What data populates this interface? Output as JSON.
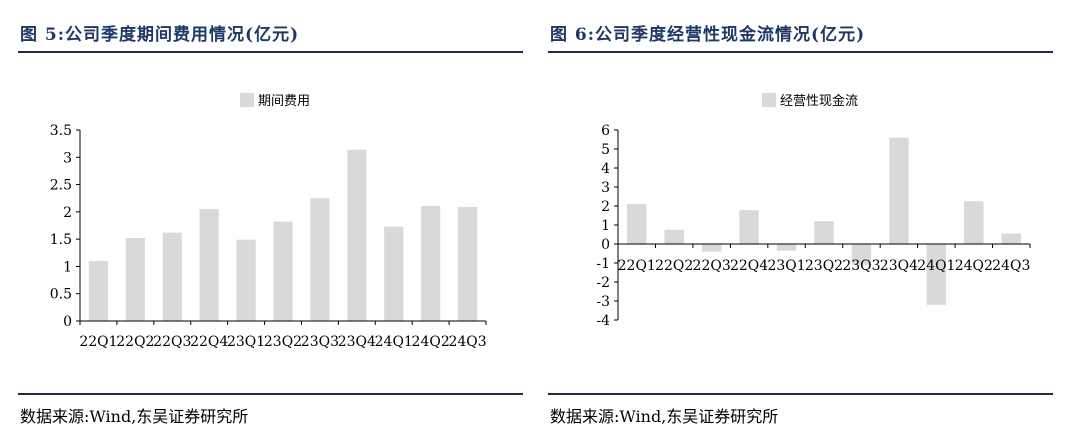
{
  "panels": [
    {
      "title": "图 5:公司季度期间费用情况(亿元)",
      "source": "数据来源:Wind,东吴证券研究所",
      "chart_data": {
        "type": "bar",
        "title": "",
        "xlabel": "",
        "ylabel": "",
        "legend": "top-center",
        "grid": false,
        "categories": [
          "22Q1",
          "22Q2",
          "22Q3",
          "22Q4",
          "23Q1",
          "23Q2",
          "23Q3",
          "23Q4",
          "24Q1",
          "24Q2",
          "24Q3"
        ],
        "series": [
          {
            "name": "期间费用",
            "values": [
              1.1,
              1.52,
              1.62,
              2.05,
              1.49,
              1.82,
              2.25,
              3.14,
              1.73,
              2.11,
              2.09
            ]
          }
        ],
        "ylim": [
          0,
          3.5
        ],
        "yticks": [
          0,
          0.5,
          1,
          1.5,
          2,
          2.5,
          3,
          3.5
        ],
        "ytick_labels": [
          "0",
          "0.5",
          "1",
          "1.5",
          "2",
          "2.5",
          "3",
          "3.5"
        ],
        "bar_color": "#d9d9d9"
      }
    },
    {
      "title": "图 6:公司季度经营性现金流情况(亿元)",
      "source": "数据来源:Wind,东吴证券研究所",
      "chart_data": {
        "type": "bar",
        "title": "",
        "xlabel": "",
        "ylabel": "",
        "legend": "top-center",
        "grid": false,
        "categories": [
          "22Q1",
          "22Q2",
          "22Q3",
          "22Q4",
          "23Q1",
          "23Q2",
          "23Q3",
          "23Q4",
          "24Q1",
          "24Q2",
          "24Q3"
        ],
        "series": [
          {
            "name": "经营性现金流",
            "values": [
              2.1,
              0.75,
              -0.4,
              1.78,
              -0.35,
              1.2,
              -1.1,
              5.6,
              -3.2,
              2.25,
              0.55
            ]
          }
        ],
        "ylim": [
          -4,
          6
        ],
        "yticks": [
          -4,
          -3,
          -2,
          -1,
          0,
          1,
          2,
          3,
          4,
          5,
          6
        ],
        "ytick_labels": [
          "-4",
          "-3",
          "-2",
          "-1",
          "0",
          "1",
          "2",
          "3",
          "4",
          "5",
          "6"
        ],
        "bar_color": "#d9d9d9"
      }
    }
  ]
}
